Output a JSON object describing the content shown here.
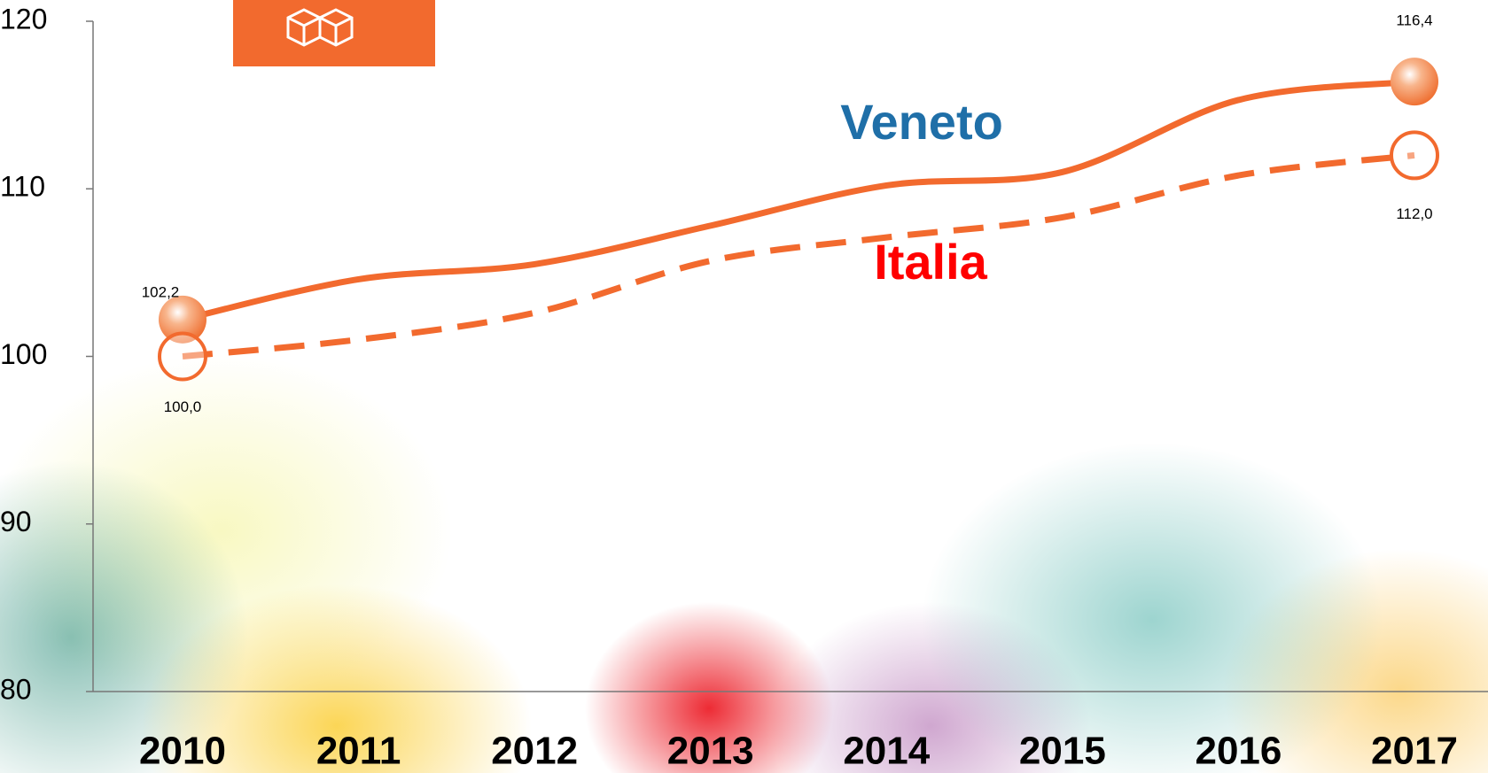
{
  "chart_data": {
    "type": "line",
    "categories": [
      "2010",
      "2011",
      "2012",
      "2013",
      "2014",
      "2015",
      "2016",
      "2017"
    ],
    "series": [
      {
        "name": "Veneto",
        "color": "#f26a2e",
        "label_color": "#1f6fa8",
        "dash": false,
        "values": [
          102.2,
          104.6,
          105.5,
          107.8,
          110.2,
          111.0,
          115.3,
          116.4
        ],
        "value_labels": [
          "102,2",
          null,
          null,
          null,
          null,
          null,
          null,
          "116,4"
        ]
      },
      {
        "name": "Italia",
        "color": "#f26a2e",
        "label_color": "#ff0000",
        "dash": true,
        "values": [
          100.0,
          101.0,
          102.6,
          105.7,
          107.1,
          108.3,
          110.8,
          112.0
        ],
        "value_labels": [
          "100,0",
          null,
          null,
          null,
          null,
          null,
          null,
          "112,0"
        ]
      }
    ],
    "ylim": [
      80,
      120
    ],
    "yticks": [
      80,
      90,
      100,
      110,
      120
    ],
    "grid": false
  }
}
